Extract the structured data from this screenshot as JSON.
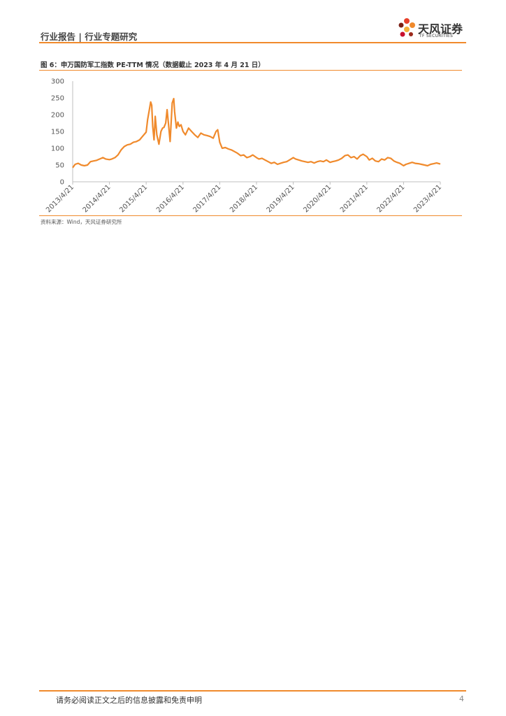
{
  "header": {
    "section": "行业报告 | 行业专题研究",
    "logo_name": "天风证券",
    "logo_sub": "TF SECURITIES",
    "accent_color": "#f08a2c"
  },
  "figure": {
    "title": "图 6：申万国防军工指数 PE-TTM 情况（数据截止 2023 年 4 月 21 日）",
    "source": "资料来源：Wind，天风证券研究所"
  },
  "footer": {
    "disclaimer": "请务必阅读正文之后的信息披露和免责申明",
    "page_number": "4"
  },
  "chart_data": {
    "type": "line",
    "title": "",
    "xlabel": "",
    "ylabel": "",
    "ylim": [
      0,
      300
    ],
    "yticks": [
      0,
      50,
      100,
      150,
      200,
      250,
      300
    ],
    "xticks": [
      "2013/4/21",
      "2014/4/21",
      "2015/4/21",
      "2016/4/21",
      "2017/4/21",
      "2018/4/21",
      "2019/4/21",
      "2020/4/21",
      "2021/4/21",
      "2022/4/21",
      "2023/4/21"
    ],
    "grid": false,
    "legend": "none",
    "line_color": "#f08a2c",
    "series": [
      {
        "x": [
          "2013-04-21",
          "2013-05-15",
          "2013-06-15",
          "2013-07-15",
          "2013-08-15",
          "2013-09-15",
          "2013-10-15",
          "2013-11-15",
          "2013-12-15",
          "2014-01-15",
          "2014-02-15",
          "2014-03-15",
          "2014-04-21",
          "2014-05-15",
          "2014-06-15",
          "2014-07-15",
          "2014-08-15",
          "2014-09-15",
          "2014-10-15",
          "2014-11-15",
          "2014-12-15",
          "2015-01-15",
          "2015-02-15",
          "2015-03-15",
          "2015-04-21",
          "2015-05-05",
          "2015-05-20",
          "2015-06-05",
          "2015-06-15",
          "2015-06-25",
          "2015-07-08",
          "2015-07-20",
          "2015-08-05",
          "2015-08-26",
          "2015-09-15",
          "2015-10-01",
          "2015-10-15",
          "2015-11-01",
          "2015-11-15",
          "2015-12-01",
          "2015-12-15",
          "2016-01-05",
          "2016-01-20",
          "2016-01-28",
          "2016-02-15",
          "2016-03-01",
          "2016-03-15",
          "2016-04-01",
          "2016-04-21",
          "2016-05-15",
          "2016-06-15",
          "2016-07-15",
          "2016-08-15",
          "2016-09-15",
          "2016-10-15",
          "2016-11-15",
          "2016-12-15",
          "2017-01-15",
          "2017-02-15",
          "2017-03-15",
          "2017-04-01",
          "2017-04-21",
          "2017-05-15",
          "2017-06-15",
          "2017-07-15",
          "2017-08-15",
          "2017-09-15",
          "2017-10-15",
          "2017-11-15",
          "2017-12-15",
          "2018-01-15",
          "2018-02-15",
          "2018-03-15",
          "2018-04-21",
          "2018-05-15",
          "2018-06-15",
          "2018-07-15",
          "2018-08-15",
          "2018-09-15",
          "2018-10-15",
          "2018-11-15",
          "2018-12-15",
          "2019-01-15",
          "2019-02-15",
          "2019-03-15",
          "2019-04-21",
          "2019-05-15",
          "2019-06-15",
          "2019-07-15",
          "2019-08-15",
          "2019-09-15",
          "2019-10-15",
          "2019-11-15",
          "2019-12-15",
          "2020-01-15",
          "2020-02-15",
          "2020-03-15",
          "2020-04-21",
          "2020-05-15",
          "2020-06-15",
          "2020-07-15",
          "2020-08-15",
          "2020-09-15",
          "2020-10-15",
          "2020-11-15",
          "2020-12-15",
          "2021-01-15",
          "2021-02-15",
          "2021-03-15",
          "2021-04-21",
          "2021-05-15",
          "2021-06-15",
          "2021-07-15",
          "2021-08-15",
          "2021-09-15",
          "2021-10-15",
          "2021-11-15",
          "2021-12-15",
          "2022-01-15",
          "2022-02-15",
          "2022-03-15",
          "2022-04-21",
          "2022-05-15",
          "2022-06-15",
          "2022-07-15",
          "2022-08-15",
          "2022-09-15",
          "2022-10-15",
          "2022-11-15",
          "2022-12-15",
          "2023-01-15",
          "2023-02-15",
          "2023-03-15",
          "2023-04-21"
        ],
        "values": [
          42,
          52,
          55,
          50,
          48,
          50,
          60,
          62,
          64,
          68,
          72,
          68,
          66,
          68,
          72,
          80,
          95,
          105,
          110,
          112,
          118,
          120,
          125,
          135,
          148,
          185,
          210,
          238,
          228,
          165,
          125,
          195,
          140,
          112,
          150,
          160,
          162,
          175,
          215,
          165,
          120,
          235,
          248,
          210,
          160,
          178,
          165,
          170,
          150,
          140,
          160,
          150,
          140,
          132,
          145,
          140,
          138,
          135,
          130,
          150,
          155,
          118,
          100,
          102,
          98,
          95,
          90,
          85,
          78,
          80,
          72,
          75,
          80,
          72,
          68,
          70,
          65,
          60,
          55,
          58,
          52,
          55,
          58,
          60,
          65,
          72,
          68,
          65,
          62,
          60,
          58,
          60,
          56,
          60,
          62,
          60,
          65,
          58,
          60,
          62,
          65,
          70,
          78,
          80,
          72,
          75,
          68,
          78,
          82,
          75,
          65,
          70,
          62,
          60,
          68,
          65,
          72,
          70,
          62,
          58,
          55,
          48,
          52,
          55,
          58,
          55,
          54,
          52,
          50,
          48,
          52,
          54,
          56,
          53
        ]
      }
    ]
  }
}
